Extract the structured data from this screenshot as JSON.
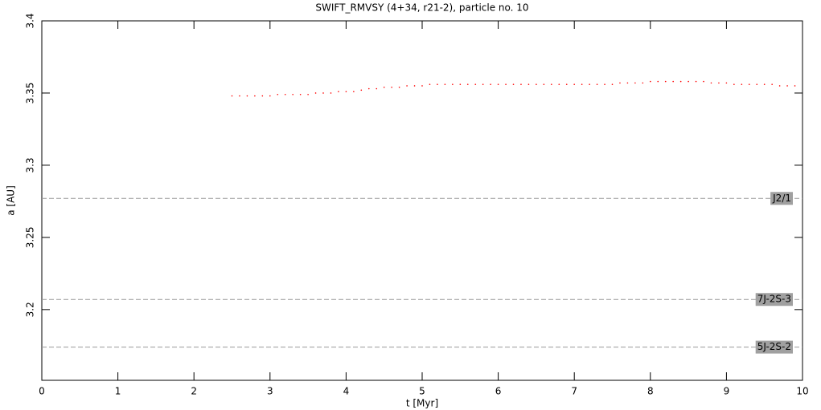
{
  "chart_data": {
    "type": "scatter",
    "title": "SWIFT_RMVSY (4+34, r21-2), particle no. 10",
    "xlabel": "t [Myr]",
    "ylabel": "a [AU]",
    "xlim": [
      0,
      10
    ],
    "ylim": [
      3.151,
      3.4
    ],
    "xticks": [
      0,
      1,
      2,
      3,
      4,
      5,
      6,
      7,
      8,
      9,
      10
    ],
    "yticks": [
      3.2,
      3.25,
      3.3,
      3.35,
      3.4
    ],
    "hlines": [
      {
        "value": 3.277,
        "label": "J2/1"
      },
      {
        "value": 3.207,
        "label": "7J-2S-3"
      },
      {
        "value": 3.174,
        "label": "5J-2S-2"
      }
    ],
    "series": [
      {
        "color": "#ff0000",
        "x": [
          2.5,
          2.6,
          2.7,
          2.8,
          2.9,
          3.0,
          3.1,
          3.2,
          3.3,
          3.4,
          3.5,
          3.6,
          3.7,
          3.8,
          3.9,
          4.0,
          4.1,
          4.2,
          4.3,
          4.4,
          4.5,
          4.6,
          4.7,
          4.8,
          4.9,
          5.0,
          5.1,
          5.2,
          5.3,
          5.4,
          5.5,
          5.6,
          5.7,
          5.8,
          5.9,
          6.0,
          6.1,
          6.2,
          6.3,
          6.4,
          6.5,
          6.6,
          6.7,
          6.8,
          6.9,
          7.0,
          7.1,
          7.2,
          7.3,
          7.4,
          7.5,
          7.6,
          7.7,
          7.8,
          7.9,
          8.0,
          8.1,
          8.2,
          8.3,
          8.4,
          8.5,
          8.6,
          8.7,
          8.8,
          8.9,
          9.0,
          9.1,
          9.2,
          9.3,
          9.4,
          9.5,
          9.6,
          9.7,
          9.8,
          9.9
        ],
        "values": [
          3.348,
          3.348,
          3.348,
          3.348,
          3.348,
          3.348,
          3.349,
          3.349,
          3.349,
          3.349,
          3.349,
          3.35,
          3.35,
          3.35,
          3.351,
          3.351,
          3.351,
          3.352,
          3.353,
          3.353,
          3.354,
          3.354,
          3.354,
          3.355,
          3.355,
          3.355,
          3.356,
          3.356,
          3.356,
          3.356,
          3.356,
          3.356,
          3.356,
          3.356,
          3.356,
          3.356,
          3.356,
          3.356,
          3.356,
          3.356,
          3.356,
          3.356,
          3.356,
          3.356,
          3.356,
          3.356,
          3.356,
          3.356,
          3.356,
          3.356,
          3.356,
          3.357,
          3.357,
          3.357,
          3.357,
          3.358,
          3.358,
          3.358,
          3.358,
          3.358,
          3.358,
          3.358,
          3.358,
          3.357,
          3.357,
          3.357,
          3.356,
          3.356,
          3.356,
          3.356,
          3.356,
          3.356,
          3.355,
          3.355,
          3.355
        ]
      }
    ]
  }
}
